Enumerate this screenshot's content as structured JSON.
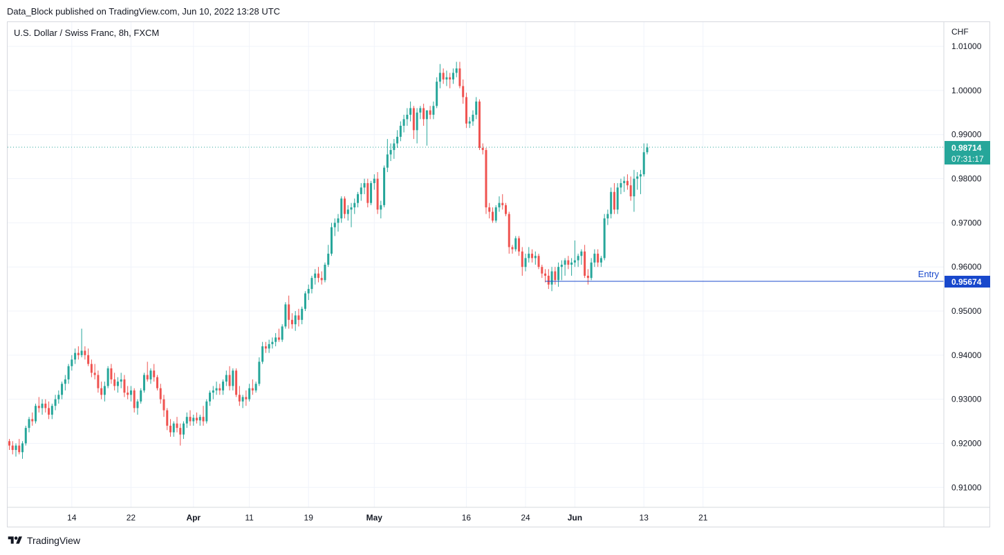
{
  "header": {
    "published_text": "Data_Block published on TradingView.com, Jun 10, 2022 13:28 UTC"
  },
  "symbol_label": "U.S. Dollar / Swiss Franc, 8h, FXCM",
  "footer": {
    "brand": "TradingView",
    "logo_icon": "tradingview-logo-icon"
  },
  "colors": {
    "up": "#26a69a",
    "down": "#ef5350",
    "grid": "#f0f3fa",
    "entry_line": "#1848cc",
    "last_price_bg": "#26a69a",
    "last_price_line": "#26a69a"
  },
  "chart_data": {
    "type": "candlestick",
    "title": "U.S. Dollar / Swiss Franc, 8h, FXCM",
    "currency_label": "CHF",
    "ylim": [
      0.9055,
      1.0155
    ],
    "y_ticks": [
      "1.01000",
      "1.00000",
      "0.99000",
      "0.98000",
      "0.97000",
      "0.96000",
      "0.95000",
      "0.94000",
      "0.93000",
      "0.92000",
      "0.91000"
    ],
    "y_tick_values": [
      1.01,
      1.0,
      0.99,
      0.98,
      0.97,
      0.96,
      0.95,
      0.94,
      0.93,
      0.92,
      0.91
    ],
    "x_ticks": [
      {
        "label": "14",
        "index": 19,
        "bold": false
      },
      {
        "label": "22",
        "index": 37,
        "bold": false
      },
      {
        "label": "Apr",
        "index": 56,
        "bold": true
      },
      {
        "label": "11",
        "index": 73,
        "bold": false
      },
      {
        "label": "19",
        "index": 91,
        "bold": false
      },
      {
        "label": "May",
        "index": 111,
        "bold": true
      },
      {
        "label": "16",
        "index": 139,
        "bold": false
      },
      {
        "label": "24",
        "index": 157,
        "bold": false
      },
      {
        "label": "Jun",
        "index": 172,
        "bold": true
      },
      {
        "label": "13",
        "index": 193,
        "bold": false
      },
      {
        "label": "21",
        "index": 211,
        "bold": false
      }
    ],
    "ohlc": [
      [
        0.9205,
        0.921,
        0.9185,
        0.9195
      ],
      [
        0.9195,
        0.9205,
        0.9175,
        0.9185
      ],
      [
        0.9185,
        0.92,
        0.917,
        0.9195
      ],
      [
        0.9195,
        0.921,
        0.9175,
        0.918
      ],
      [
        0.918,
        0.9205,
        0.9165,
        0.92
      ],
      [
        0.92,
        0.924,
        0.9195,
        0.9235
      ],
      [
        0.9235,
        0.926,
        0.9225,
        0.9255
      ],
      [
        0.9255,
        0.927,
        0.924,
        0.925
      ],
      [
        0.925,
        0.929,
        0.9245,
        0.9285
      ],
      [
        0.9285,
        0.9305,
        0.927,
        0.928
      ],
      [
        0.928,
        0.93,
        0.9265,
        0.929
      ],
      [
        0.929,
        0.93,
        0.927,
        0.928
      ],
      [
        0.928,
        0.9295,
        0.9255,
        0.9265
      ],
      [
        0.9265,
        0.929,
        0.9255,
        0.9285
      ],
      [
        0.9285,
        0.931,
        0.9275,
        0.93
      ],
      [
        0.93,
        0.932,
        0.929,
        0.931
      ],
      [
        0.931,
        0.934,
        0.93,
        0.9335
      ],
      [
        0.9335,
        0.9355,
        0.932,
        0.9345
      ],
      [
        0.9345,
        0.938,
        0.9335,
        0.9375
      ],
      [
        0.9375,
        0.94,
        0.9365,
        0.939
      ],
      [
        0.939,
        0.9415,
        0.938,
        0.9405
      ],
      [
        0.9405,
        0.942,
        0.939,
        0.94
      ],
      [
        0.94,
        0.946,
        0.9395,
        0.941
      ],
      [
        0.941,
        0.942,
        0.939,
        0.94
      ],
      [
        0.94,
        0.9415,
        0.9375,
        0.938
      ],
      [
        0.938,
        0.939,
        0.935,
        0.936
      ],
      [
        0.936,
        0.938,
        0.9345,
        0.9355
      ],
      [
        0.9355,
        0.9365,
        0.9315,
        0.9325
      ],
      [
        0.9325,
        0.934,
        0.93,
        0.931
      ],
      [
        0.931,
        0.934,
        0.9295,
        0.933
      ],
      [
        0.933,
        0.9375,
        0.9325,
        0.937
      ],
      [
        0.937,
        0.938,
        0.9335,
        0.9345
      ],
      [
        0.9345,
        0.936,
        0.932,
        0.933
      ],
      [
        0.933,
        0.935,
        0.9315,
        0.934
      ],
      [
        0.934,
        0.936,
        0.9325,
        0.9345
      ],
      [
        0.9345,
        0.9355,
        0.9305,
        0.9315
      ],
      [
        0.9315,
        0.933,
        0.93,
        0.931
      ],
      [
        0.931,
        0.933,
        0.9295,
        0.932
      ],
      [
        0.932,
        0.9325,
        0.927,
        0.928
      ],
      [
        0.928,
        0.93,
        0.9265,
        0.9295
      ],
      [
        0.9295,
        0.9325,
        0.929,
        0.932
      ],
      [
        0.932,
        0.936,
        0.9315,
        0.9355
      ],
      [
        0.9355,
        0.9385,
        0.934,
        0.9345
      ],
      [
        0.9345,
        0.937,
        0.9335,
        0.9365
      ],
      [
        0.9365,
        0.938,
        0.934,
        0.935
      ],
      [
        0.935,
        0.9355,
        0.932,
        0.9325
      ],
      [
        0.9325,
        0.9335,
        0.929,
        0.93
      ],
      [
        0.93,
        0.931,
        0.926,
        0.9275
      ],
      [
        0.9275,
        0.928,
        0.923,
        0.924
      ],
      [
        0.924,
        0.9255,
        0.9215,
        0.9225
      ],
      [
        0.9225,
        0.925,
        0.9215,
        0.9245
      ],
      [
        0.9245,
        0.926,
        0.9225,
        0.9235
      ],
      [
        0.9235,
        0.9245,
        0.9195,
        0.922
      ],
      [
        0.922,
        0.925,
        0.921,
        0.9245
      ],
      [
        0.9245,
        0.927,
        0.9235,
        0.926
      ],
      [
        0.926,
        0.9275,
        0.924,
        0.925
      ],
      [
        0.925,
        0.9265,
        0.924,
        0.9258
      ],
      [
        0.9258,
        0.927,
        0.9245,
        0.9252
      ],
      [
        0.9252,
        0.9265,
        0.924,
        0.926
      ],
      [
        0.926,
        0.9285,
        0.924,
        0.925
      ],
      [
        0.925,
        0.93,
        0.9245,
        0.9295
      ],
      [
        0.9295,
        0.932,
        0.9285,
        0.9315
      ],
      [
        0.9315,
        0.933,
        0.93,
        0.932
      ],
      [
        0.932,
        0.934,
        0.931,
        0.9325
      ],
      [
        0.9325,
        0.9335,
        0.931,
        0.932
      ],
      [
        0.932,
        0.9345,
        0.931,
        0.934
      ],
      [
        0.934,
        0.9365,
        0.933,
        0.9355
      ],
      [
        0.9355,
        0.9375,
        0.932,
        0.933
      ],
      [
        0.933,
        0.937,
        0.932,
        0.9365
      ],
      [
        0.9365,
        0.937,
        0.9305,
        0.931
      ],
      [
        0.931,
        0.933,
        0.9285,
        0.9295
      ],
      [
        0.9295,
        0.931,
        0.928,
        0.9305
      ],
      [
        0.9305,
        0.932,
        0.9285,
        0.93
      ],
      [
        0.93,
        0.9335,
        0.9295,
        0.9325
      ],
      [
        0.9325,
        0.9345,
        0.931,
        0.932
      ],
      [
        0.932,
        0.934,
        0.9315,
        0.9335
      ],
      [
        0.9335,
        0.9395,
        0.933,
        0.9385
      ],
      [
        0.9385,
        0.943,
        0.938,
        0.942
      ],
      [
        0.942,
        0.943,
        0.9405,
        0.9415
      ],
      [
        0.9415,
        0.9435,
        0.9405,
        0.9425
      ],
      [
        0.9425,
        0.944,
        0.9415,
        0.943
      ],
      [
        0.943,
        0.945,
        0.942,
        0.944
      ],
      [
        0.944,
        0.946,
        0.943,
        0.9435
      ],
      [
        0.9435,
        0.947,
        0.943,
        0.9465
      ],
      [
        0.9465,
        0.952,
        0.946,
        0.9515
      ],
      [
        0.9515,
        0.9535,
        0.946,
        0.948
      ],
      [
        0.948,
        0.9495,
        0.946,
        0.947
      ],
      [
        0.947,
        0.95,
        0.9455,
        0.949
      ],
      [
        0.949,
        0.9505,
        0.9465,
        0.948
      ],
      [
        0.948,
        0.951,
        0.947,
        0.9505
      ],
      [
        0.9505,
        0.9545,
        0.95,
        0.954
      ],
      [
        0.954,
        0.956,
        0.9525,
        0.955
      ],
      [
        0.955,
        0.958,
        0.954,
        0.9575
      ],
      [
        0.9575,
        0.9595,
        0.956,
        0.9585
      ],
      [
        0.9585,
        0.96,
        0.9565,
        0.9575
      ],
      [
        0.9575,
        0.959,
        0.956,
        0.957
      ],
      [
        0.957,
        0.961,
        0.9565,
        0.9605
      ],
      [
        0.9605,
        0.965,
        0.96,
        0.963
      ],
      [
        0.963,
        0.97,
        0.9625,
        0.969
      ],
      [
        0.969,
        0.971,
        0.967,
        0.97
      ],
      [
        0.97,
        0.972,
        0.968,
        0.971
      ],
      [
        0.971,
        0.976,
        0.97,
        0.9755
      ],
      [
        0.9755,
        0.976,
        0.971,
        0.972
      ],
      [
        0.972,
        0.974,
        0.9705,
        0.973
      ],
      [
        0.973,
        0.9745,
        0.969,
        0.9735
      ],
      [
        0.9735,
        0.9755,
        0.972,
        0.9745
      ],
      [
        0.9745,
        0.977,
        0.9735,
        0.9765
      ],
      [
        0.9765,
        0.979,
        0.975,
        0.978
      ],
      [
        0.978,
        0.98,
        0.9765,
        0.979
      ],
      [
        0.979,
        0.98,
        0.9735,
        0.9745
      ],
      [
        0.9745,
        0.9795,
        0.974,
        0.979
      ],
      [
        0.979,
        0.981,
        0.9775,
        0.98
      ],
      [
        0.98,
        0.9815,
        0.972,
        0.973
      ],
      [
        0.973,
        0.975,
        0.971,
        0.974
      ],
      [
        0.974,
        0.983,
        0.9735,
        0.9825
      ],
      [
        0.9825,
        0.989,
        0.9815,
        0.9855
      ],
      [
        0.9855,
        0.988,
        0.984,
        0.9865
      ],
      [
        0.9865,
        0.989,
        0.9845,
        0.988
      ],
      [
        0.988,
        0.991,
        0.987,
        0.9895
      ],
      [
        0.9895,
        0.993,
        0.9885,
        0.992
      ],
      [
        0.992,
        0.9945,
        0.9905,
        0.9935
      ],
      [
        0.9935,
        0.996,
        0.992,
        0.9945
      ],
      [
        0.9945,
        0.9975,
        0.993,
        0.996
      ],
      [
        0.996,
        0.9965,
        0.989,
        0.991
      ],
      [
        0.991,
        0.996,
        0.988,
        0.995
      ],
      [
        0.995,
        0.9965,
        0.9935,
        0.996
      ],
      [
        0.996,
        0.997,
        0.992,
        0.9935
      ],
      [
        0.9935,
        0.9955,
        0.9875,
        0.9955
      ],
      [
        0.9955,
        0.9965,
        0.9935,
        0.9945
      ],
      [
        0.9945,
        0.9975,
        0.9935,
        0.9965
      ],
      [
        0.9965,
        1.003,
        0.996,
        1.002
      ],
      [
        1.002,
        1.006,
        1.0005,
        1.004
      ],
      [
        1.004,
        1.005,
        1.0015,
        1.0025
      ],
      [
        1.0025,
        1.0045,
        1.001,
        1.003
      ],
      [
        1.003,
        1.004,
        1.0005,
        1.0025
      ],
      [
        1.0025,
        1.005,
        1.0015,
        1.004
      ],
      [
        1.004,
        1.0065,
        1.003,
        1.005
      ],
      [
        1.005,
        1.0065,
        1.0005,
        1.001
      ],
      [
        1.001,
        1.0025,
        0.997,
        0.9985
      ],
      [
        0.9985,
        0.9995,
        0.9915,
        0.9925
      ],
      [
        0.9925,
        0.994,
        0.9915,
        0.993
      ],
      [
        0.993,
        0.9955,
        0.992,
        0.9945
      ],
      [
        0.9945,
        0.9985,
        0.9935,
        0.9975
      ],
      [
        0.9975,
        0.998,
        0.9865,
        0.987
      ],
      [
        0.987,
        0.988,
        0.9855,
        0.9865
      ],
      [
        0.9865,
        0.987,
        0.972,
        0.9735
      ],
      [
        0.9735,
        0.9745,
        0.971,
        0.9725
      ],
      [
        0.9725,
        0.9735,
        0.97,
        0.9705
      ],
      [
        0.9705,
        0.974,
        0.97,
        0.9735
      ],
      [
        0.9735,
        0.976,
        0.9725,
        0.9745
      ],
      [
        0.9745,
        0.9765,
        0.973,
        0.974
      ],
      [
        0.974,
        0.9745,
        0.9715,
        0.972
      ],
      [
        0.972,
        0.9725,
        0.963,
        0.9645
      ],
      [
        0.9645,
        0.965,
        0.963,
        0.964
      ],
      [
        0.964,
        0.967,
        0.9635,
        0.9665
      ],
      [
        0.9665,
        0.967,
        0.9625,
        0.9635
      ],
      [
        0.9635,
        0.9645,
        0.958,
        0.96
      ],
      [
        0.96,
        0.963,
        0.959,
        0.962
      ],
      [
        0.962,
        0.9645,
        0.961,
        0.963
      ],
      [
        0.963,
        0.964,
        0.961,
        0.962
      ],
      [
        0.962,
        0.9635,
        0.9605,
        0.9625
      ],
      [
        0.9625,
        0.963,
        0.9595,
        0.96
      ],
      [
        0.96,
        0.9605,
        0.9575,
        0.9585
      ],
      [
        0.9585,
        0.9595,
        0.9565,
        0.958
      ],
      [
        0.958,
        0.9595,
        0.955,
        0.956
      ],
      [
        0.956,
        0.96,
        0.9545,
        0.959
      ],
      [
        0.959,
        0.96,
        0.956,
        0.957
      ],
      [
        0.957,
        0.961,
        0.9555,
        0.96
      ],
      [
        0.96,
        0.9615,
        0.957,
        0.9605
      ],
      [
        0.9605,
        0.962,
        0.958,
        0.9615
      ],
      [
        0.9615,
        0.9625,
        0.9595,
        0.9605
      ],
      [
        0.9605,
        0.962,
        0.958,
        0.961
      ],
      [
        0.961,
        0.966,
        0.96,
        0.9615
      ],
      [
        0.9615,
        0.963,
        0.96,
        0.9625
      ],
      [
        0.9625,
        0.964,
        0.9605,
        0.9635
      ],
      [
        0.9635,
        0.965,
        0.9575,
        0.958
      ],
      [
        0.958,
        0.9595,
        0.956,
        0.9575
      ],
      [
        0.9575,
        0.962,
        0.957,
        0.961
      ],
      [
        0.961,
        0.964,
        0.96,
        0.963
      ],
      [
        0.963,
        0.964,
        0.96,
        0.961
      ],
      [
        0.961,
        0.9625,
        0.96,
        0.962
      ],
      [
        0.962,
        0.972,
        0.9615,
        0.971
      ],
      [
        0.971,
        0.973,
        0.9695,
        0.972
      ],
      [
        0.972,
        0.978,
        0.971,
        0.977
      ],
      [
        0.977,
        0.979,
        0.972,
        0.973
      ],
      [
        0.973,
        0.979,
        0.972,
        0.978
      ],
      [
        0.978,
        0.98,
        0.9765,
        0.979
      ],
      [
        0.979,
        0.9805,
        0.977,
        0.9795
      ],
      [
        0.9795,
        0.981,
        0.9775,
        0.9785
      ],
      [
        0.9785,
        0.9805,
        0.975,
        0.976
      ],
      [
        0.976,
        0.982,
        0.9725,
        0.98
      ],
      [
        0.98,
        0.9815,
        0.9775,
        0.9805
      ],
      [
        0.9805,
        0.982,
        0.9765,
        0.981
      ],
      [
        0.981,
        0.988,
        0.9805,
        0.986
      ],
      [
        0.986,
        0.988,
        0.9855,
        0.9871
      ]
    ],
    "last_price": {
      "value": 0.98714,
      "label": "0.98714",
      "countdown": "07:31:17"
    },
    "entry_line": {
      "value": 0.95674,
      "label": "0.95674",
      "text": "Entry",
      "start_index": 163
    }
  }
}
